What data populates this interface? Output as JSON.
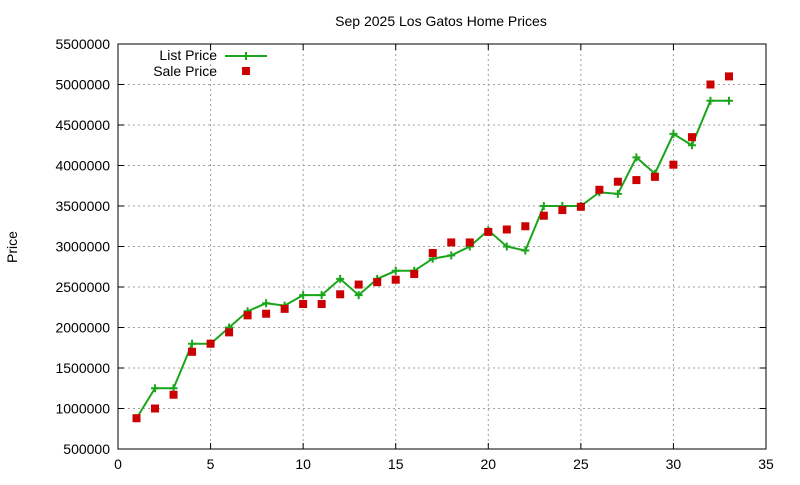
{
  "chart_data": {
    "type": "line",
    "title": "Sep 2025 Los Gatos Home Prices",
    "xlabel": "",
    "ylabel": "Price",
    "xlim": [
      0,
      35
    ],
    "ylim": [
      500000,
      5500000
    ],
    "xticks": [
      0,
      5,
      10,
      15,
      20,
      25,
      30,
      35
    ],
    "yticks": [
      500000,
      1000000,
      1500000,
      2000000,
      2500000,
      3000000,
      3500000,
      4000000,
      4500000,
      5000000,
      5500000
    ],
    "grid": true,
    "legend_position": "top-left",
    "series": [
      {
        "name": "List Price",
        "style": "line-with-plus-markers",
        "color": "#1aa51a",
        "x": [
          1,
          2,
          3,
          4,
          5,
          6,
          7,
          8,
          9,
          10,
          11,
          12,
          13,
          14,
          15,
          16,
          17,
          18,
          19,
          20,
          21,
          22,
          23,
          24,
          25,
          26,
          27,
          28,
          29,
          30,
          31,
          32,
          33
        ],
        "y": [
          880000,
          1250000,
          1250000,
          1800000,
          1800000,
          2000000,
          2200000,
          2300000,
          2270000,
          2400000,
          2400000,
          2600000,
          2400000,
          2600000,
          2700000,
          2700000,
          2850000,
          2890000,
          3000000,
          3200000,
          3000000,
          2950000,
          3500000,
          3500000,
          3500000,
          3670000,
          3650000,
          4100000,
          3900000,
          4390000,
          4250000,
          4800000,
          4800000
        ]
      },
      {
        "name": "Sale Price",
        "style": "square-markers",
        "color": "#cc0000",
        "x": [
          1,
          2,
          3,
          4,
          5,
          6,
          7,
          8,
          9,
          10,
          11,
          12,
          13,
          14,
          15,
          16,
          17,
          18,
          19,
          20,
          21,
          22,
          23,
          24,
          25,
          26,
          27,
          28,
          29,
          30,
          31,
          32,
          33
        ],
        "y": [
          880000,
          1000000,
          1170000,
          1700000,
          1800000,
          1940000,
          2150000,
          2170000,
          2230000,
          2290000,
          2290000,
          2410000,
          2530000,
          2560000,
          2590000,
          2660000,
          2920000,
          3050000,
          3050000,
          3180000,
          3210000,
          3250000,
          3380000,
          3450000,
          3490000,
          3700000,
          3800000,
          3820000,
          3860000,
          4010000,
          4350000,
          5000000,
          5100000
        ]
      }
    ]
  }
}
